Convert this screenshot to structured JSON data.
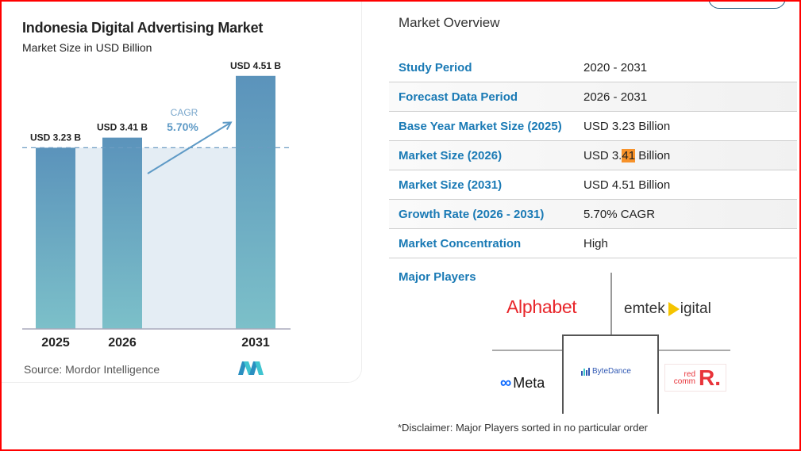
{
  "chart_data": {
    "type": "bar",
    "title": "Indonesia Digital Advertising Market",
    "subtitle": "Market Size in USD Billion",
    "categories": [
      "2025",
      "2026",
      "2031"
    ],
    "values": [
      3.23,
      3.41,
      4.51
    ],
    "data_labels": [
      "USD 3.23 B",
      "USD 3.41 B",
      "USD 4.51 B"
    ],
    "xlabel": "",
    "ylabel": "",
    "ylim": [
      0,
      5.1
    ],
    "grid": false,
    "reference_line": {
      "value": 3.23,
      "style": "dashed"
    },
    "annotation": {
      "label": "CAGR",
      "value": "5.70%"
    },
    "source": "Source:  Mordor Intelligence",
    "colors": {
      "bar_top": "#5b93bb",
      "bar_bottom": "#7cc0c9",
      "shade": "#e4edf4",
      "annotation": "#5e9ac6"
    }
  },
  "overview": {
    "title": "Market Overview",
    "rows": [
      {
        "label": "Study Period",
        "value": "2020 - 2031"
      },
      {
        "label": "Forecast Data Period",
        "value": "2026 - 2031"
      },
      {
        "label": "Base Year Market Size (2025)",
        "value": "USD 3.23 Billion"
      },
      {
        "label": "Market Size (2026)",
        "value_pre": "USD 3.",
        "value_hl": "41",
        "value_post": " Billion"
      },
      {
        "label": "Market Size (2031)",
        "value": "USD 4.51 Billion"
      },
      {
        "label": "Growth Rate (2026 - 2031)",
        "value": "5.70% CAGR"
      },
      {
        "label": "Market Concentration",
        "value": "High"
      }
    ],
    "major_players_label": "Major Players",
    "players": {
      "alphabet": "Alphabet",
      "emtek_pre": "emtek",
      "emtek_post": "igital",
      "meta": "Meta",
      "meta_icon": "∞",
      "bytedance": "ByteDance",
      "redcomm_line1": "red",
      "redcomm_line2": "comm",
      "redcomm_mark": "R."
    },
    "disclaimer": "*Disclaimer: Major Players sorted in no particular order"
  },
  "colors": {
    "label_blue": "#1a7ab5",
    "highlight": "#f7922a",
    "frame": "#ff0000"
  }
}
